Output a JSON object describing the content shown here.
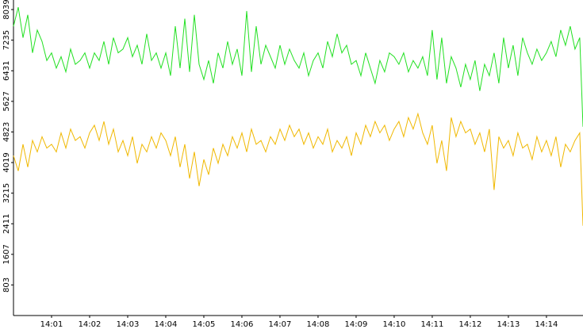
{
  "chart_data": {
    "type": "line",
    "x": [
      0,
      0.125,
      0.25,
      0.375,
      0.5,
      0.625,
      0.75,
      0.875,
      1,
      1.125,
      1.25,
      1.375,
      1.5,
      1.625,
      1.75,
      1.875,
      2,
      2.125,
      2.25,
      2.375,
      2.5,
      2.625,
      2.75,
      2.875,
      3,
      3.125,
      3.25,
      3.375,
      3.5,
      3.625,
      3.75,
      3.875,
      4,
      4.125,
      4.25,
      4.375,
      4.5,
      4.625,
      4.75,
      4.875,
      5,
      5.125,
      5.25,
      5.375,
      5.5,
      5.625,
      5.75,
      5.875,
      6,
      6.125,
      6.25,
      6.375,
      6.5,
      6.625,
      6.75,
      6.875,
      7,
      7.125,
      7.25,
      7.375,
      7.5,
      7.625,
      7.75,
      7.875,
      8,
      8.125,
      8.25,
      8.375,
      8.5,
      8.625,
      8.75,
      8.875,
      9,
      9.125,
      9.25,
      9.375,
      9.5,
      9.625,
      9.75,
      9.875,
      10,
      10.125,
      10.25,
      10.375,
      10.5,
      10.625,
      10.75,
      10.875,
      11,
      11.125,
      11.25,
      11.375,
      11.5,
      11.625,
      11.75,
      11.875,
      12,
      12.125,
      12.25,
      12.375,
      12.5,
      12.625,
      12.75,
      12.875,
      13,
      13.125,
      13.25,
      13.375,
      13.5,
      13.625,
      13.75,
      13.875,
      14,
      14.125,
      14.25,
      14.375,
      14.5,
      14.625,
      14.75,
      14.875,
      14.96
    ],
    "series": [
      {
        "color": "#22e022",
        "values": [
          7600,
          8100,
          7300,
          7900,
          6900,
          7500,
          7200,
          6700,
          6900,
          6500,
          6800,
          6400,
          7000,
          6600,
          6700,
          6900,
          6500,
          6900,
          6700,
          7200,
          6600,
          7300,
          6900,
          7000,
          7300,
          6800,
          7100,
          6600,
          7400,
          6700,
          6900,
          6500,
          6900,
          6300,
          7600,
          6500,
          7800,
          6400,
          7900,
          6600,
          6200,
          6700,
          6100,
          6900,
          6500,
          7200,
          6600,
          7000,
          6300,
          8000,
          6400,
          7600,
          6600,
          7100,
          6800,
          6500,
          7100,
          6600,
          7000,
          6700,
          6500,
          6900,
          6300,
          6700,
          6900,
          6500,
          7200,
          6800,
          7400,
          6900,
          7100,
          6600,
          6700,
          6300,
          6900,
          6500,
          6100,
          6700,
          6400,
          6900,
          6800,
          6600,
          6900,
          6400,
          6700,
          6500,
          6800,
          6300,
          7500,
          6200,
          7300,
          6100,
          6800,
          6500,
          6000,
          6600,
          6200,
          6700,
          5900,
          6600,
          6300,
          6900,
          6100,
          7300,
          6500,
          7100,
          6300,
          7300,
          6900,
          6600,
          7000,
          6700,
          6900,
          7200,
          6800,
          7500,
          7100,
          7600,
          7000,
          7300,
          4960
        ]
      },
      {
        "color": "#f0b800",
        "values": [
          4200,
          3800,
          4500,
          3900,
          4600,
          4300,
          4700,
          4400,
          4500,
          4300,
          4800,
          4400,
          4900,
          4600,
          4700,
          4400,
          4800,
          5000,
          4600,
          5100,
          4500,
          4900,
          4300,
          4600,
          4200,
          4700,
          4000,
          4500,
          4300,
          4700,
          4400,
          4800,
          4600,
          4200,
          4700,
          3900,
          4500,
          3600,
          4300,
          3400,
          4100,
          3700,
          4400,
          4000,
          4500,
          4200,
          4700,
          4400,
          4800,
          4300,
          4900,
          4500,
          4600,
          4300,
          4700,
          4500,
          4900,
          4600,
          5000,
          4700,
          4900,
          4500,
          4800,
          4400,
          4700,
          4500,
          4900,
          4300,
          4600,
          4400,
          4700,
          4200,
          4800,
          4500,
          5000,
          4700,
          5100,
          4800,
          5000,
          4600,
          4900,
          5100,
          4700,
          5200,
          4900,
          5300,
          4800,
          4500,
          5000,
          4000,
          4600,
          3800,
          5200,
          4700,
          5100,
          4800,
          4900,
          4500,
          4800,
          4300,
          4900,
          3300,
          4700,
          4400,
          4600,
          4200,
          4800,
          4400,
          4500,
          4100,
          4700,
          4300,
          4600,
          4200,
          4700,
          3900,
          4500,
          4300,
          4600,
          4800,
          2360
        ]
      }
    ],
    "xlim": [
      0,
      14.96
    ],
    "xticks": [
      {
        "value": 1,
        "label": "14:01"
      },
      {
        "value": 2,
        "label": "14:02"
      },
      {
        "value": 3,
        "label": "14:03"
      },
      {
        "value": 4,
        "label": "14:04"
      },
      {
        "value": 5,
        "label": "14:05"
      },
      {
        "value": 6,
        "label": "14:06"
      },
      {
        "value": 7,
        "label": "14:07"
      },
      {
        "value": 8,
        "label": "14:08"
      },
      {
        "value": 9,
        "label": "14:09"
      },
      {
        "value": 10,
        "label": "14:10"
      },
      {
        "value": 11,
        "label": "14:11"
      },
      {
        "value": 12,
        "label": "14:12"
      },
      {
        "value": 13,
        "label": "14:13"
      },
      {
        "value": 14,
        "label": "14:14"
      }
    ],
    "ylim": [
      0,
      8290
    ],
    "yticks": [
      803,
      1607,
      2411,
      3215,
      4019,
      4823,
      5627,
      6431,
      7235,
      8039
    ]
  }
}
